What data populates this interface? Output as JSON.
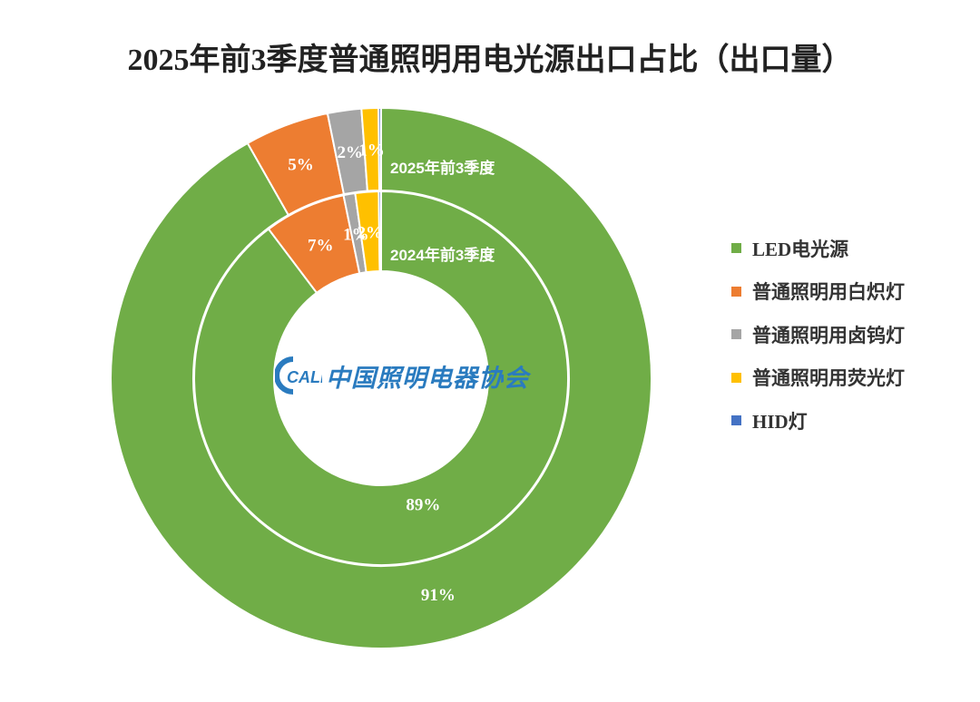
{
  "chart_data": {
    "type": "pie",
    "title": "2025年前3季度普通照明用电光源出口占比（出口量）",
    "categories": [
      "LED电光源",
      "普通照明用白炽灯",
      "普通照明用卤钨灯",
      "普通照明用荧光灯",
      "HID灯"
    ],
    "colors": [
      "#70ad47",
      "#ed7d31",
      "#a5a5a5",
      "#ffc000",
      "#4472c4"
    ],
    "series": [
      {
        "name": "2025年前3季度",
        "values": [
          91,
          5,
          2,
          1,
          0.15
        ],
        "labels": [
          "91%",
          "5%",
          "2%",
          "1%",
          ""
        ]
      },
      {
        "name": "2024年前3季度",
        "values": [
          89,
          7,
          1,
          2,
          0.2
        ],
        "labels": [
          "89%",
          "7%",
          "1%",
          "2%",
          ""
        ]
      }
    ],
    "legend_position": "right"
  },
  "logo": {
    "mark": "CALI",
    "text": "中国照明电器协会"
  }
}
